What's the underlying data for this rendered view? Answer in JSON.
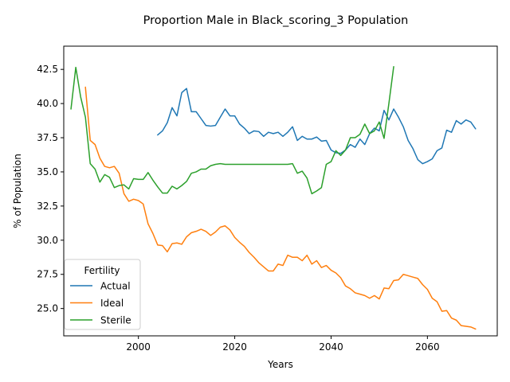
{
  "chart_data": {
    "type": "line",
    "title": "Proportion Male in Black_scoring_3 Population",
    "xlabel": "Years",
    "ylabel": "% of Population",
    "xlim": [
      1984.5,
      2074.5
    ],
    "ylim": [
      23.0,
      44.2
    ],
    "xticks": [
      2000,
      2020,
      2040,
      2060
    ],
    "xtick_labels": [
      "2000",
      "2020",
      "2040",
      "2060"
    ],
    "yticks": [
      25.0,
      27.5,
      30.0,
      32.5,
      35.0,
      37.5,
      40.0,
      42.5
    ],
    "ytick_labels": [
      "25.0",
      "27.5",
      "30.0",
      "32.5",
      "35.0",
      "37.5",
      "40.0",
      "42.5"
    ],
    "grid": false,
    "legend": {
      "title": "Fertility",
      "position": "lower-left"
    },
    "series": [
      {
        "name": "Actual",
        "color": "#1f77b4",
        "x": [
          2004,
          2005,
          2006,
          2007,
          2008,
          2009,
          2010,
          2011,
          2012,
          2013,
          2014,
          2015,
          2016,
          2017,
          2018,
          2019,
          2020,
          2021,
          2022,
          2023,
          2024,
          2025,
          2026,
          2027,
          2028,
          2029,
          2030,
          2031,
          2032,
          2033,
          2034,
          2035,
          2036,
          2037,
          2038,
          2039,
          2040,
          2041,
          2042,
          2043,
          2044,
          2045,
          2046,
          2047,
          2048,
          2049,
          2050,
          2051,
          2052,
          2053,
          2054,
          2055,
          2056,
          2057,
          2058,
          2059,
          2060,
          2061,
          2062,
          2063,
          2064,
          2065,
          2066,
          2067,
          2068,
          2069,
          2070
        ],
        "y": [
          37.7,
          38.0,
          38.6,
          39.7,
          39.1,
          40.8,
          41.1,
          39.4,
          39.4,
          38.9,
          38.4,
          38.35,
          38.4,
          39.0,
          39.6,
          39.1,
          39.1,
          38.5,
          38.2,
          37.8,
          38.0,
          37.95,
          37.6,
          37.9,
          37.8,
          37.9,
          37.6,
          37.9,
          38.3,
          37.3,
          37.6,
          37.4,
          37.4,
          37.55,
          37.25,
          37.3,
          36.6,
          36.4,
          36.35,
          36.6,
          37.0,
          36.8,
          37.4,
          37.0,
          37.8,
          38.2,
          38.0,
          39.5,
          38.8,
          39.6,
          39.0,
          38.3,
          37.3,
          36.7,
          35.9,
          35.6,
          35.75,
          35.95,
          36.55,
          36.75,
          38.05,
          37.9,
          38.75,
          38.5,
          38.8,
          38.65,
          38.15
        ]
      },
      {
        "name": "Ideal",
        "color": "#ff7f0e",
        "x": [
          1989,
          1990,
          1991,
          1992,
          1993,
          1994,
          1995,
          1996,
          1997,
          1998,
          1999,
          2000,
          2001,
          2002,
          2003,
          2004,
          2005,
          2006,
          2007,
          2008,
          2009,
          2010,
          2011,
          2012,
          2013,
          2014,
          2015,
          2016,
          2017,
          2018,
          2019,
          2020,
          2021,
          2022,
          2023,
          2024,
          2025,
          2026,
          2027,
          2028,
          2029,
          2030,
          2031,
          2032,
          2033,
          2034,
          2035,
          2036,
          2037,
          2038,
          2039,
          2040,
          2041,
          2042,
          2043,
          2044,
          2045,
          2046,
          2047,
          2048,
          2049,
          2050,
          2051,
          2052,
          2053,
          2054,
          2055,
          2056,
          2057,
          2058,
          2059,
          2060,
          2061,
          2062,
          2063,
          2064,
          2065,
          2066,
          2067,
          2068,
          2069,
          2070
        ],
        "y": [
          41.2,
          37.3,
          37.0,
          36.0,
          35.4,
          35.3,
          35.4,
          34.9,
          33.4,
          32.85,
          33.0,
          32.9,
          32.65,
          31.2,
          30.5,
          29.65,
          29.6,
          29.15,
          29.75,
          29.8,
          29.7,
          30.25,
          30.55,
          30.65,
          30.8,
          30.65,
          30.35,
          30.6,
          30.95,
          31.05,
          30.75,
          30.2,
          29.85,
          29.55,
          29.1,
          28.75,
          28.35,
          28.05,
          27.75,
          27.75,
          28.25,
          28.15,
          28.9,
          28.75,
          28.75,
          28.5,
          28.9,
          28.25,
          28.5,
          28.0,
          28.15,
          27.8,
          27.6,
          27.25,
          26.65,
          26.45,
          26.15,
          26.05,
          25.95,
          25.75,
          25.95,
          25.7,
          26.5,
          26.45,
          27.05,
          27.1,
          27.5,
          27.4,
          27.3,
          27.2,
          26.75,
          26.4,
          25.75,
          25.5,
          24.8,
          24.85,
          24.3,
          24.15,
          23.75,
          23.7,
          23.65,
          23.5
        ]
      },
      {
        "name": "Sterile",
        "color": "#2ca02c",
        "x": [
          1986,
          1987,
          1988,
          1989,
          1990,
          1991,
          1992,
          1993,
          1994,
          1995,
          1996,
          1997,
          1998,
          1999,
          2000,
          2001,
          2002,
          2003,
          2004,
          2005,
          2006,
          2007,
          2008,
          2009,
          2010,
          2011,
          2012,
          2013,
          2014,
          2015,
          2016,
          2017,
          2018,
          2019,
          2020,
          2021,
          2022,
          2023,
          2024,
          2025,
          2026,
          2027,
          2028,
          2029,
          2030,
          2031,
          2032,
          2033,
          2034,
          2035,
          2036,
          2037,
          2038,
          2039,
          2040,
          2041,
          2042,
          2043,
          2044,
          2045,
          2046,
          2047,
          2048,
          2049,
          2050,
          2051,
          2052,
          2053
        ],
        "y": [
          39.6,
          42.65,
          40.5,
          39.0,
          35.6,
          35.2,
          34.25,
          34.8,
          34.6,
          33.85,
          34.0,
          34.05,
          33.75,
          34.5,
          34.45,
          34.45,
          34.95,
          34.4,
          33.9,
          33.45,
          33.45,
          33.95,
          33.75,
          34.0,
          34.3,
          34.9,
          35.0,
          35.2,
          35.2,
          35.45,
          35.55,
          35.6,
          35.55,
          35.55,
          35.55,
          35.55,
          35.55,
          35.55,
          35.55,
          35.55,
          35.55,
          35.55,
          35.55,
          35.55,
          35.55,
          35.55,
          35.6,
          34.9,
          35.05,
          34.55,
          33.4,
          33.6,
          33.85,
          35.55,
          35.75,
          36.55,
          36.2,
          36.6,
          37.5,
          37.5,
          37.75,
          38.5,
          37.8,
          38.0,
          38.65,
          37.45,
          40.0,
          42.7
        ]
      }
    ]
  }
}
